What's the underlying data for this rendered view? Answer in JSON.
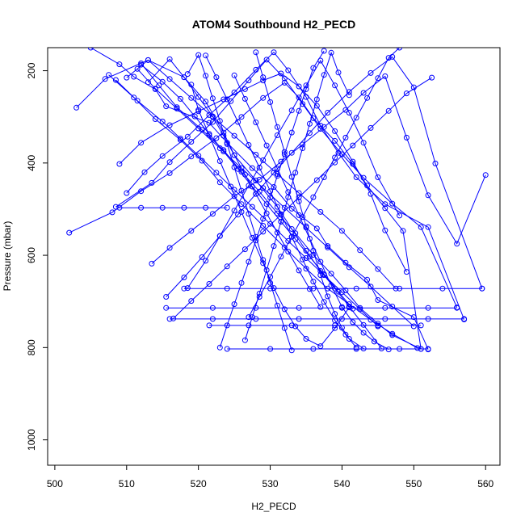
{
  "chart_data": {
    "type": "line",
    "title": "ATOM4 Southbound H2_PECD",
    "xlabel": "H2_PECD",
    "ylabel": "Pressure (mbar)",
    "xlim": [
      499,
      562
    ],
    "ylim": [
      1055,
      150
    ],
    "y_inverted": true,
    "xticks": [
      500,
      510,
      520,
      530,
      540,
      550,
      560
    ],
    "yticks": [
      200,
      400,
      600,
      800,
      1000
    ],
    "grid": false,
    "marker": "open-circle",
    "color": "#0000ff",
    "series": [
      {
        "x": [
          505.0,
          509.0,
          511.0,
          514.0,
          515.5,
          521.5,
          524.0,
          527.5,
          530.5,
          533.0,
          536.5,
          538.0,
          540.5,
          543.5,
          545.0,
          550.0,
          552.0
        ],
        "y": [
          150,
          186,
          213,
          240,
          277,
          313,
          356,
          411,
          452,
          499,
          542,
          580,
          616,
          653,
          697,
          734,
          804
        ]
      },
      {
        "x": [
          502.0,
          508.0,
          512.0,
          516.0,
          519.0,
          522.5,
          526.0,
          529.0,
          532.0,
          534.0,
          536.0,
          539.0,
          541.5,
          543.5,
          546.0,
          548.5,
          551.0
        ],
        "y": [
          551,
          507,
          461,
          422,
          386,
          346,
          300,
          259,
          226,
          258,
          303,
          352,
          402,
          449,
          498,
          547,
          803
        ]
      },
      {
        "x": [
          503.0,
          507.0,
          513.0,
          518.0,
          521.0,
          523.5,
          525.0,
          528.0,
          531.0,
          533.0,
          535.0,
          537.0,
          539.0,
          541.0,
          543.0,
          545.5
        ],
        "y": [
          280,
          218,
          177,
          214,
          267,
          334,
          383,
          438,
          495,
          543,
          590,
          634,
          672,
          711,
          751,
          802
        ]
      },
      {
        "x": [
          510.0,
          512.5,
          515.0,
          518.5,
          521.5,
          525.0,
          528.0,
          530.5,
          532.5,
          535.0,
          537.0,
          539.5,
          542.0,
          546.0,
          552.0,
          557.0
        ],
        "y": [
          465,
          420,
          385,
          343,
          296,
          247,
          198,
          160,
          199,
          257,
          319,
          378,
          431,
          489,
          539,
          739
        ]
      },
      {
        "x": [
          508.5,
          513.5,
          516.0,
          519.0,
          522.0,
          524.5,
          527.0,
          529.5,
          532.0,
          534.5,
          537.0,
          540.0,
          543.0,
          547.0,
          551.0,
          556.0
        ],
        "y": [
          495,
          443,
          398,
          354,
          311,
          266,
          221,
          176,
          217,
          272,
          326,
          381,
          432,
          488,
          539,
          713
        ]
      },
      {
        "x": [
          512.0,
          514.5,
          517.0,
          520.5,
          523.5,
          526.0,
          528.5,
          531.0,
          533.5,
          536.0,
          538.5,
          540.5,
          542.5,
          545.0,
          547.0,
          551.0
        ],
        "y": [
          184,
          232,
          279,
          328,
          372,
          419,
          462,
          509,
          552,
          599,
          640,
          676,
          714,
          748,
          773,
          803
        ]
      },
      {
        "x": [
          515.5,
          518.0,
          520.5,
          523.0,
          525.5,
          528.0,
          530.5,
          533.0,
          535.5,
          538.0,
          541.0,
          544.0,
          547.0,
          550.0,
          553.0,
          559.5
        ],
        "y": [
          690,
          648,
          604,
          558,
          512,
          467,
          421,
          378,
          335,
          291,
          246,
          205,
          170,
          236,
          401,
          672
        ]
      },
      {
        "x": [
          513.5,
          516.0,
          519.0,
          522.0,
          525.0,
          528.5,
          531.5,
          534.5,
          537.5,
          540.5,
          543.0,
          546.0,
          549.0,
          552.0,
          556.0,
          560.0
        ],
        "y": [
          618,
          584,
          547,
          510,
          472,
          436,
          397,
          360,
          322,
          285,
          248,
          212,
          345,
          470,
          575,
          426
        ]
      },
      {
        "x": [
          509.0,
          512.0,
          516.0,
          520.0,
          523.5,
          526.5,
          529.0,
          531.5,
          534.0,
          536.5,
          539.0,
          541.5,
          544.0,
          546.0,
          549.0
        ],
        "y": [
          402,
          356,
          318,
          288,
          262,
          240,
          221,
          206,
          234,
          276,
          331,
          397,
          467,
          546,
          636
        ]
      },
      {
        "x": [
          507.5,
          511.0,
          514.0,
          517.5,
          520.5,
          523.0,
          526.0,
          529.0,
          532.0,
          535.0,
          538.0,
          541.0,
          544.0,
          547.0,
          550.5
        ],
        "y": [
          209,
          258,
          305,
          350,
          395,
          442,
          489,
          536,
          583,
          629,
          672,
          706,
          740,
          770,
          801
        ]
      },
      {
        "x": [
          516.5,
          519.0,
          521.5,
          524.0,
          526.5,
          529.0,
          531.5,
          534.0,
          536.5,
          539.0,
          541.5,
          544.0,
          546.5,
          549.0,
          552.5
        ],
        "y": [
          737,
          699,
          662,
          624,
          587,
          549,
          512,
          474,
          437,
          399,
          362,
          324,
          287,
          249,
          215
        ]
      },
      {
        "x": [
          518.5,
          521.0,
          523.0,
          525.0,
          527.0,
          529.0,
          531.0,
          533.0,
          535.0,
          537.0,
          539.0,
          541.0,
          543.0,
          545.0,
          548.0
        ],
        "y": [
          671,
          612,
          558,
          503,
          449,
          394,
          340,
          286,
          232,
          178,
          232,
          291,
          356,
          431,
          514
        ]
      },
      {
        "x": [
          521.0,
          522.5,
          524.0,
          525.5,
          527.0,
          528.5,
          530.0,
          531.5,
          533.0,
          534.5,
          536.0,
          537.5,
          539.0,
          540.5,
          542.0
        ],
        "y": [
          167,
          214,
          262,
          311,
          361,
          410,
          461,
          511,
          560,
          609,
          657,
          701,
          741,
          772,
          800
        ]
      },
      {
        "x": [
          523.0,
          524.0,
          525.0,
          526.0,
          527.0,
          528.0,
          529.0,
          530.0,
          531.0,
          532.0,
          533.0,
          534.0,
          535.0,
          536.0,
          537.5
        ],
        "y": [
          800,
          752,
          706,
          660,
          614,
          568,
          521,
          475,
          428,
          381,
          334,
          287,
          240,
          194,
          157
        ]
      },
      {
        "x": [
          525.0,
          526.5,
          528.0,
          529.5,
          531.0,
          532.5,
          534.0,
          535.5,
          537.0,
          538.5,
          540.0,
          541.5,
          543.0,
          544.5,
          546.5
        ],
        "y": [
          210,
          261,
          312,
          362,
          412,
          463,
          513,
          564,
          614,
          665,
          712,
          745,
          768,
          787,
          804
        ]
      },
      {
        "x": [
          526.5,
          527.5,
          528.5,
          529.5,
          530.5,
          531.5,
          532.5,
          533.5,
          534.5,
          535.5,
          536.5,
          537.5,
          538.5,
          539.5,
          541.0
        ],
        "y": [
          784,
          734,
          683,
          632,
          580,
          527,
          474,
          421,
          368,
          315,
          262,
          209,
          161,
          204,
          253
        ]
      },
      {
        "x": [
          528.0,
          529.0,
          530.0,
          531.0,
          532.0,
          533.0,
          534.0,
          535.0,
          536.0,
          537.0,
          538.0,
          539.0,
          540.0,
          541.0,
          543.0
        ],
        "y": [
          160,
          214,
          268,
          322,
          376,
          430,
          483,
          537,
          590,
          643,
          689,
          727,
          757,
          781,
          802
        ]
      },
      {
        "x": [
          527.0,
          528.5,
          530.0,
          531.5,
          533.0,
          534.5,
          536.0,
          537.5,
          539.0,
          540.5,
          542.0,
          543.5,
          545.0,
          546.5,
          548.0
        ],
        "y": [
          734,
          690,
          647,
          603,
          560,
          517,
          474,
          431,
          388,
          345,
          302,
          259,
          216,
          172,
          150
        ]
      },
      {
        "x": [
          519.0,
          520.0,
          521.5,
          523.0,
          524.5,
          526.0,
          527.5,
          529.0,
          530.5,
          532.0,
          533.5,
          535.0,
          537.0,
          539.0,
          541.0
        ],
        "y": [
          230,
          285,
          340,
          396,
          451,
          506,
          562,
          617,
          671,
          717,
          754,
          781,
          797,
          758,
          713
        ]
      },
      {
        "x": [
          533.0,
          532.0,
          531.0,
          530.0,
          529.0,
          528.0,
          527.0,
          526.0,
          525.0,
          524.0,
          523.0,
          522.0,
          521.0,
          520.0,
          518.5
        ],
        "y": [
          806,
          758,
          709,
          660,
          610,
          560,
          510,
          460,
          409,
          359,
          309,
          260,
          211,
          166,
          207
        ]
      },
      {
        "x": [
          537.0,
          535.5,
          534.0,
          532.5,
          531.0,
          529.5,
          528.0,
          526.5,
          525.0,
          523.5,
          522.0,
          520.0,
          518.0,
          516.0,
          513.0
        ],
        "y": [
          712,
          673,
          633,
          592,
          551,
          509,
          467,
          425,
          383,
          341,
          299,
          257,
          214,
          175,
          225
        ]
      },
      {
        "x": [
          541.5,
          539.5,
          537.5,
          535.5,
          533.5,
          531.5,
          529.5,
          527.5,
          525.5,
          523.5,
          521.5,
          519.5,
          517.5,
          515.0,
          512.0
        ],
        "y": [
          716,
          679,
          641,
          603,
          565,
          527,
          489,
          451,
          413,
          375,
          337,
          299,
          261,
          224,
          187
        ]
      },
      {
        "x": [
          545.0,
          542.5,
          540.0,
          537.5,
          535.0,
          532.5,
          530.0,
          527.5,
          525.0,
          522.5,
          520.0,
          517.5,
          515.0,
          511.5,
          508.5
        ],
        "y": [
          754,
          717,
          680,
          643,
          606,
          569,
          532,
          495,
          458,
          421,
          384,
          347,
          310,
          265,
          220
        ]
      },
      {
        "x": [
          547.5,
          545.0,
          542.5,
          540.0,
          537.0,
          534.0,
          531.0,
          528.0,
          525.0,
          522.0,
          519.0,
          516.0,
          513.0,
          510.0
        ],
        "y": [
          672,
          630,
          589,
          547,
          506,
          465,
          424,
          382,
          341,
          300,
          259,
          218,
          177,
          215
        ]
      },
      {
        "x": [
          550.0,
          547.0,
          544.0,
          541.0,
          538.0,
          535.0,
          532.0,
          529.0,
          526.0,
          523.0,
          520.0,
          517.0,
          514.0,
          511.5
        ],
        "y": [
          754,
          711,
          668,
          626,
          583,
          540,
          497,
          454,
          411,
          368,
          325,
          282,
          239,
          196
        ]
      }
    ],
    "horizontal_segments": [
      {
        "y": 497,
        "x": [
          509,
          512,
          515,
          518,
          521,
          524
        ]
      },
      {
        "y": 672,
        "x": [
          518,
          524,
          530,
          536,
          542,
          548,
          554,
          559.5
        ]
      },
      {
        "y": 714,
        "x": [
          515.5,
          522,
          528,
          534,
          540,
          546,
          552,
          556
        ]
      },
      {
        "y": 738,
        "x": [
          516,
          522,
          528,
          534,
          540,
          546,
          552,
          557
        ]
      },
      {
        "y": 752,
        "x": [
          521.5,
          527,
          533,
          539,
          545,
          551
        ]
      },
      {
        "y": 803,
        "x": [
          524,
          530,
          536,
          542,
          548,
          552
        ]
      }
    ]
  }
}
